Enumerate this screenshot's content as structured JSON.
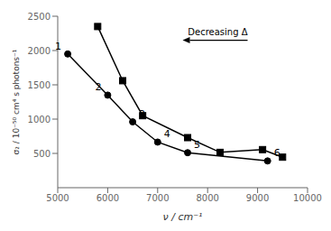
{
  "chart_data": {
    "type": "line",
    "xlabel": "ν / cm⁻¹",
    "ylabel": "σ₂ / 10⁻⁵⁰ cm⁴ s photons⁻¹",
    "xlim": [
      5000,
      10000
    ],
    "ylim": [
      0,
      2500
    ],
    "xticks": [
      5000,
      6000,
      7000,
      8000,
      9000,
      10000
    ],
    "yticks": [
      500,
      1000,
      1500,
      2000,
      2500
    ],
    "grid": false,
    "series": [
      {
        "x": [
          5200,
          6000,
          6500,
          7000,
          7600,
          9200
        ],
        "values": [
          1950,
          1350,
          960,
          665,
          510,
          390
        ],
        "color": "black",
        "marker": "circle",
        "line_style": "solid",
        "point_labels": [
          "1",
          "2",
          "3",
          "4",
          "5",
          "6"
        ]
      },
      {
        "x": [
          5800,
          6300,
          6700,
          7600,
          8250,
          9100,
          9500
        ],
        "values": [
          2350,
          1560,
          1050,
          730,
          515,
          555,
          445
        ],
        "color": "black",
        "marker": "square",
        "line_style": "solid"
      }
    ],
    "annotations": [
      {
        "text": "Decreasing Δ",
        "x": 8800,
        "x_end": 7500,
        "y": 2150
      }
    ]
  }
}
